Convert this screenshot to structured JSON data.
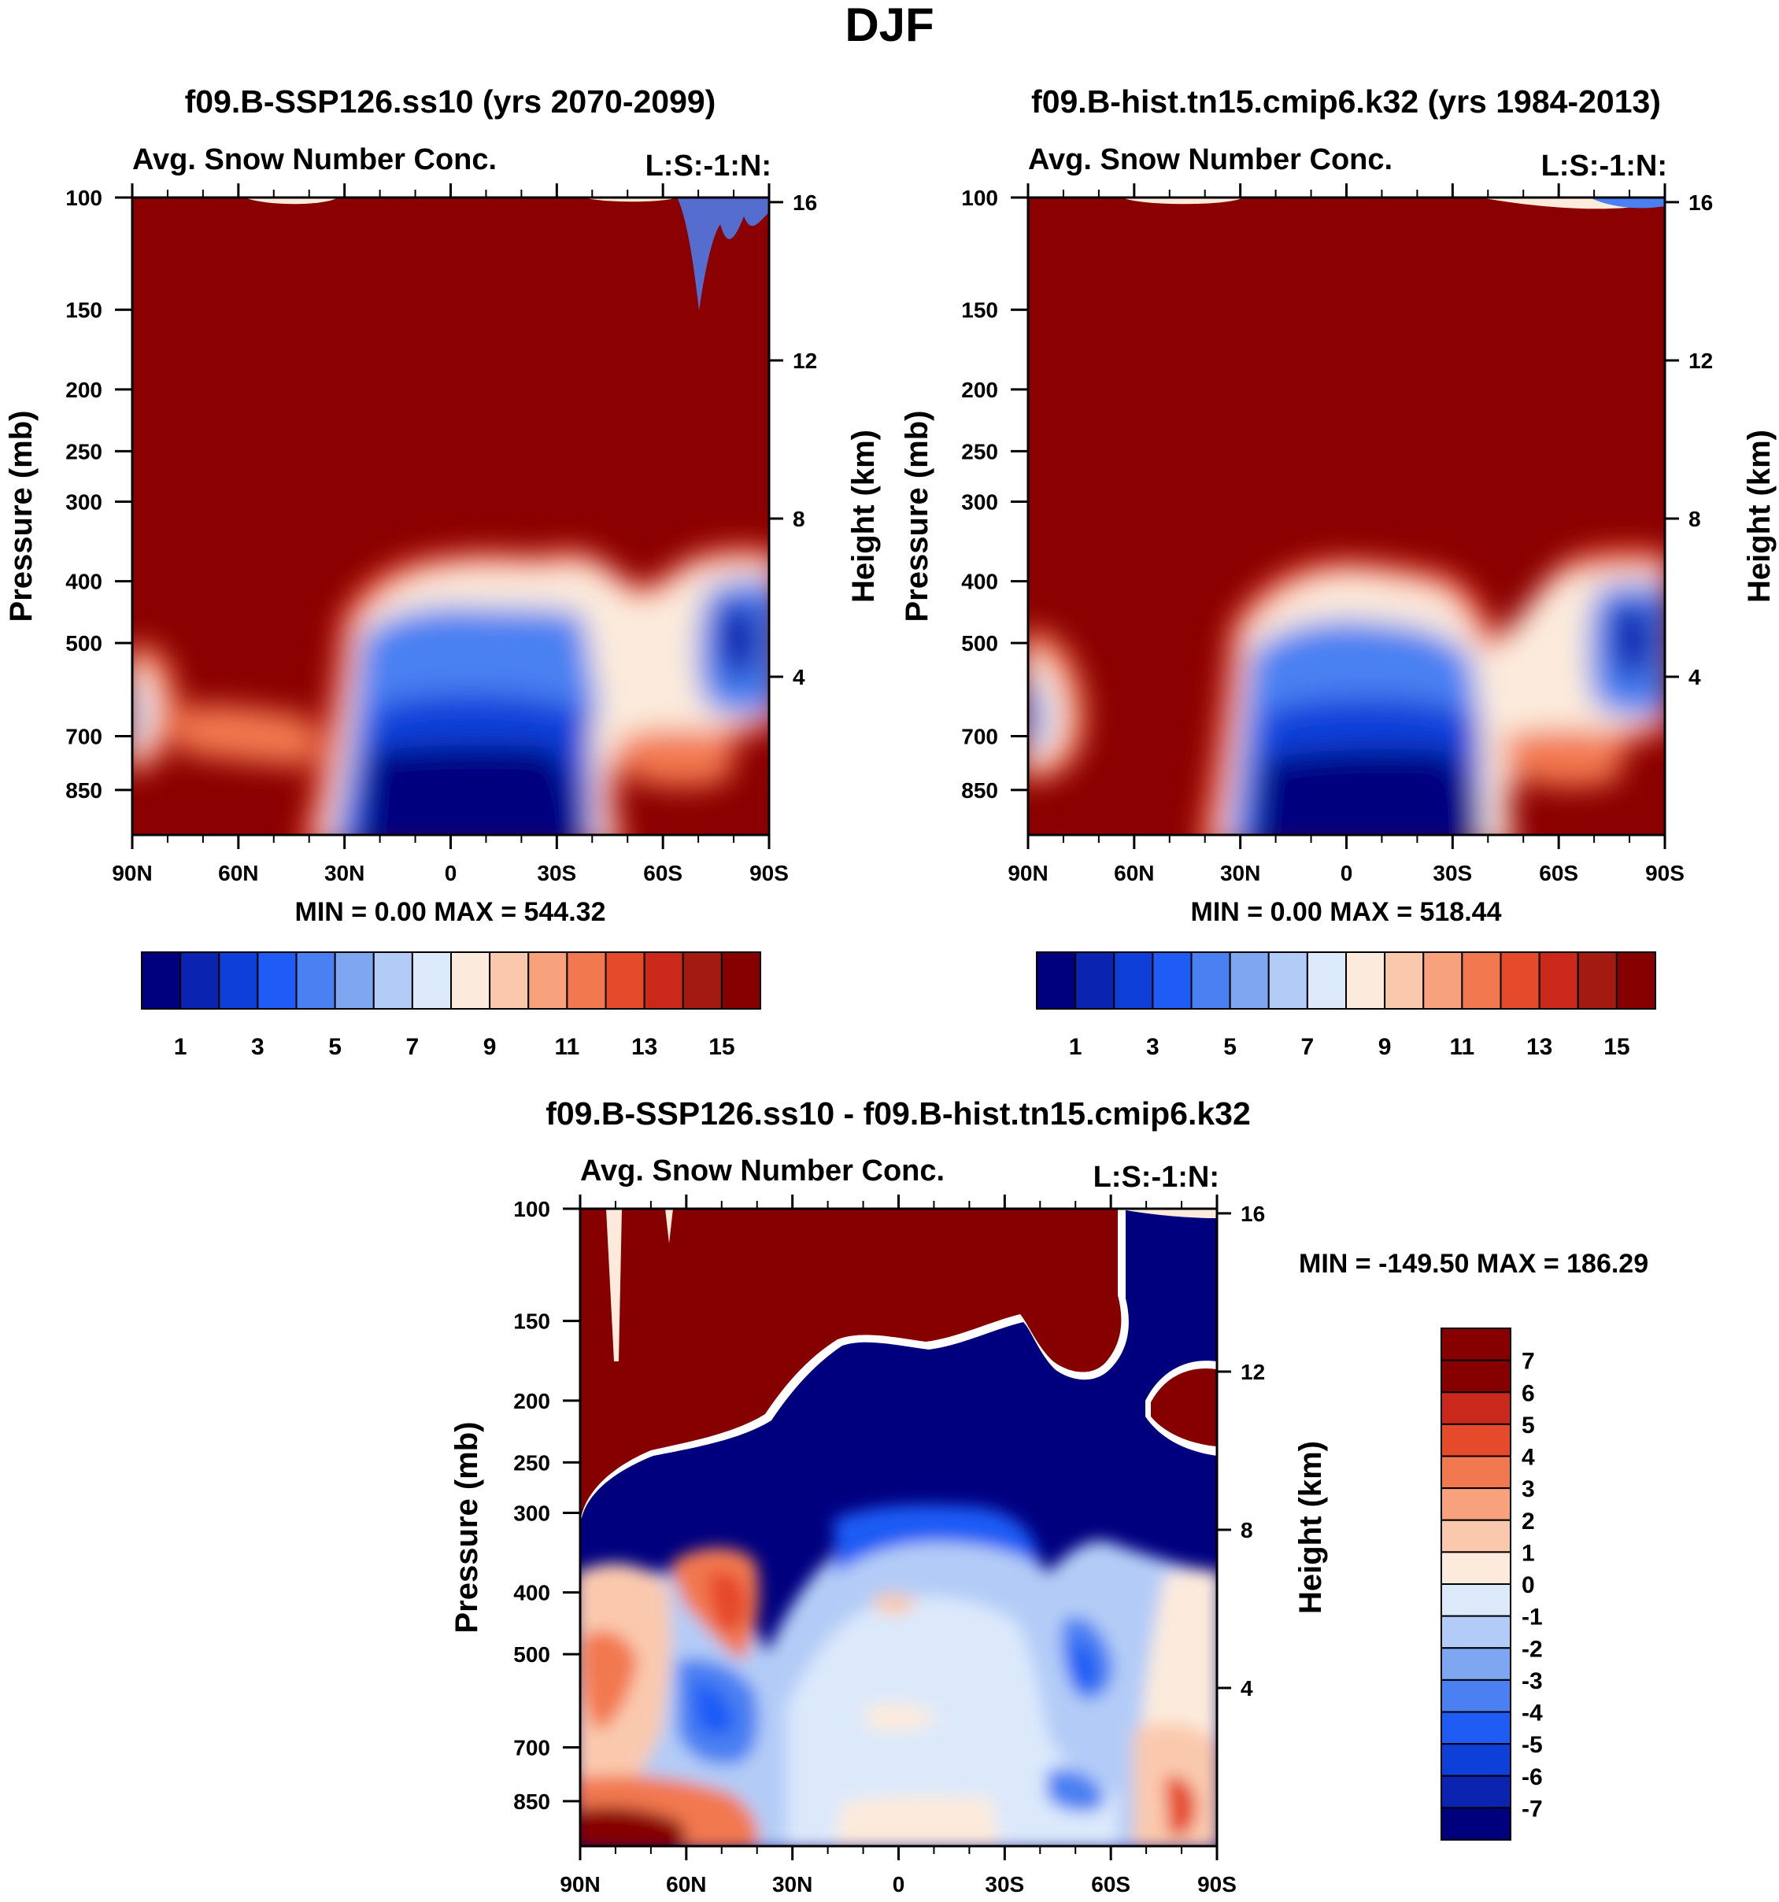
{
  "page_title": "DJF",
  "colors": {
    "warm_fill": "#8b0000",
    "cold_fill": "#00008b",
    "sequential_palette": [
      "#00007f",
      "#0a23b0",
      "#0f3fd9",
      "#1e5cf5",
      "#4a80f2",
      "#7fa6f0",
      "#b3ccf7",
      "#dce9fb",
      "#fcebdc",
      "#fac9ad",
      "#f7a27d",
      "#f27850",
      "#e54a2a",
      "#c9281a",
      "#a31a10",
      "#870000"
    ],
    "difference_palette": [
      "#00007f",
      "#0a23b0",
      "#0f3fd9",
      "#1e5cf5",
      "#4a80f2",
      "#7fa6f0",
      "#b3ccf7",
      "#dce9fb",
      "#fcebdc",
      "#fac9ad",
      "#f7a27d",
      "#f27850",
      "#e54a2a",
      "#c9281a",
      "#870000"
    ]
  },
  "chart_data": [
    {
      "id": "panel_a",
      "type": "heatmap",
      "title": "f09.B-SSP126.ss10 (yrs 2070-2099)",
      "subtitle": "Avg. Snow Number Conc.",
      "right_label": "L:S:-1:N:",
      "ylabel": "Pressure (mb)",
      "y2label": "Height (km)",
      "x_ticks": [
        "90N",
        "60N",
        "30N",
        "0",
        "30S",
        "60S",
        "90S"
      ],
      "y_ticks": [
        100,
        150,
        200,
        250,
        300,
        400,
        500,
        700,
        850
      ],
      "y2_ticks": [
        16,
        12,
        8,
        4
      ],
      "ylim": [
        100,
        1000
      ],
      "xlim": [
        -90,
        90
      ],
      "min_max": "MIN =    0.00   MAX = 544.32",
      "colorbar_labels": [
        "1",
        "3",
        "5",
        "7",
        "9",
        "11",
        "13",
        "15"
      ],
      "contour_levels": [
        0,
        1,
        2,
        3,
        4,
        5,
        6,
        7,
        8,
        9,
        10,
        11,
        12,
        13,
        14,
        15,
        16
      ]
    },
    {
      "id": "panel_b",
      "type": "heatmap",
      "title": "f09.B-hist.tn15.cmip6.k32 (yrs 1984-2013)",
      "subtitle": "Avg. Snow Number Conc.",
      "right_label": "L:S:-1:N:",
      "ylabel": "Pressure (mb)",
      "y2label": "Height (km)",
      "x_ticks": [
        "90N",
        "60N",
        "30N",
        "0",
        "30S",
        "60S",
        "90S"
      ],
      "y_ticks": [
        100,
        150,
        200,
        250,
        300,
        400,
        500,
        700,
        850
      ],
      "y2_ticks": [
        16,
        12,
        8,
        4
      ],
      "ylim": [
        100,
        1000
      ],
      "xlim": [
        -90,
        90
      ],
      "min_max": "MIN =    0.00   MAX = 518.44",
      "colorbar_labels": [
        "1",
        "3",
        "5",
        "7",
        "9",
        "11",
        "13",
        "15"
      ],
      "contour_levels": [
        0,
        1,
        2,
        3,
        4,
        5,
        6,
        7,
        8,
        9,
        10,
        11,
        12,
        13,
        14,
        15,
        16
      ]
    },
    {
      "id": "panel_diff",
      "type": "heatmap",
      "title": "f09.B-SSP126.ss10 - f09.B-hist.tn15.cmip6.k32",
      "subtitle": "Avg. Snow Number Conc.",
      "right_label": "L:S:-1:N:",
      "ylabel": "Pressure (mb)",
      "y2label": "Height (km)",
      "x_ticks": [
        "90N",
        "60N",
        "30N",
        "0",
        "30S",
        "60S",
        "90S"
      ],
      "y_ticks": [
        100,
        150,
        200,
        250,
        300,
        400,
        500,
        700,
        850
      ],
      "y2_ticks": [
        16,
        12,
        8,
        4
      ],
      "ylim": [
        100,
        1000
      ],
      "xlim": [
        -90,
        90
      ],
      "min_max": "MIN = -149.50   MAX = 186.29",
      "colorbar_labels": [
        "7",
        "6",
        "5",
        "4",
        "3",
        "2",
        "1",
        "0",
        "-1",
        "-2",
        "-3",
        "-4",
        "-5",
        "-6",
        "-7"
      ],
      "contour_levels": [
        -7,
        -6,
        -5,
        -4,
        -3,
        -2,
        -1,
        0,
        1,
        2,
        3,
        4,
        5,
        6,
        7
      ]
    }
  ]
}
